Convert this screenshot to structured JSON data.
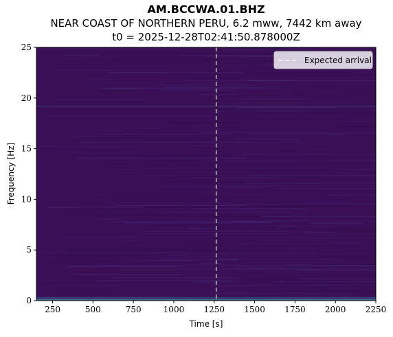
{
  "header": {
    "station": "AM.BCCWA.01.BHZ",
    "event": "NEAR COAST OF NORTHERN PERU, 6.2 mww, 7442 km away",
    "t0": "t0 = 2025-12-28T02:41:50.878000Z"
  },
  "chart_data": {
    "type": "heatmap",
    "xlabel": "Time [s]",
    "ylabel": "Frequency [Hz]",
    "xlim": [
      150,
      2250
    ],
    "ylim": [
      0,
      25
    ],
    "x_ticks": [
      250,
      500,
      750,
      1000,
      1250,
      1500,
      1750,
      2000,
      2250
    ],
    "y_ticks": [
      0,
      5,
      10,
      15,
      20,
      25
    ],
    "colormap": "viridis",
    "background_color": "#3b0f55",
    "expected_arrival": 1262,
    "legend": {
      "label": "Expected arrival",
      "placement": "top-right"
    },
    "bright_bands_hz": [
      0.1,
      0.3,
      19.2,
      4.1
    ],
    "grid": false
  }
}
